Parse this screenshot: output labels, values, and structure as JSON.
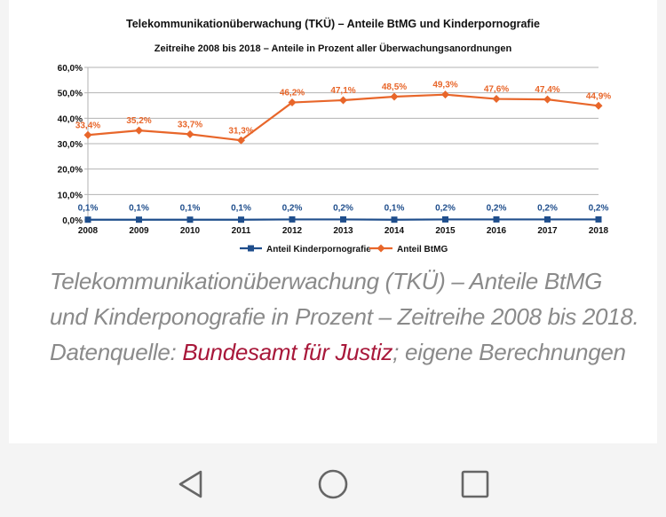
{
  "chart_data": {
    "type": "line",
    "title": "Telekommunikationüberwachung (TKÜ) – Anteile BtMG und Kinderpornografie",
    "subtitle": "Zeitreihe 2008 bis 2018 – Anteile in Prozent aller Überwachungsanordnungen",
    "x": [
      "2008",
      "2009",
      "2010",
      "2011",
      "2012",
      "2013",
      "2014",
      "2015",
      "2016",
      "2017",
      "2018"
    ],
    "ylim": [
      0,
      60
    ],
    "yticks": [
      "0,0%",
      "10,0%",
      "20,0%",
      "30,0%",
      "40,0%",
      "50,0%",
      "60,0%"
    ],
    "grid": true,
    "legend_position": "bottom",
    "series": [
      {
        "name": "Anteil Kinderpornografie",
        "color": "#1f4e8c",
        "marker": "square",
        "values": [
          0.1,
          0.1,
          0.1,
          0.1,
          0.2,
          0.2,
          0.1,
          0.2,
          0.2,
          0.2,
          0.2
        ],
        "labels": [
          "0,1%",
          "0,1%",
          "0,1%",
          "0,1%",
          "0,2%",
          "0,2%",
          "0,1%",
          "0,2%",
          "0,2%",
          "0,2%",
          "0,2%"
        ]
      },
      {
        "name": "Anteil BtMG",
        "color": "#e8662a",
        "marker": "diamond",
        "values": [
          33.4,
          35.2,
          33.7,
          31.3,
          46.2,
          47.1,
          48.5,
          49.3,
          47.6,
          47.4,
          44.9
        ],
        "labels": [
          "33,4%",
          "35,2%",
          "33,7%",
          "31,3%",
          "46,2%",
          "47,1%",
          "48,5%",
          "49,3%",
          "47,6%",
          "47,4%",
          "44,9%"
        ]
      }
    ]
  },
  "caption": {
    "text_before": "Telekommunikationüberwachung (TKÜ) – Anteile BtMG und Kinderponografie in Prozent – Zeitreihe 2008 bis 2018. Datenquelle: ",
    "link_text": "Bundesamt für Justiz",
    "text_after": "; eigene Berechnungen",
    "link_color": "#a8183a"
  },
  "navbar": {
    "back_icon": "triangle-back-icon",
    "home_icon": "circle-home-icon",
    "recents_icon": "square-recents-icon"
  }
}
